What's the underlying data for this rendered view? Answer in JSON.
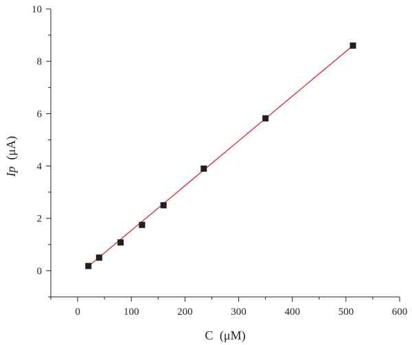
{
  "chart_data": {
    "type": "scatter",
    "title": "",
    "xlabel_main": "C",
    "xlabel_unit": "(μM)",
    "ylabel_main": "Ip",
    "ylabel_unit": "(μA)",
    "xlim": [
      -50,
      600
    ],
    "ylim": [
      -1,
      10
    ],
    "xticks": [
      0,
      100,
      200,
      300,
      400,
      500,
      600
    ],
    "yticks": [
      0,
      2,
      4,
      6,
      8,
      10
    ],
    "xtick_labels": [
      "0",
      "100",
      "200",
      "300",
      "400",
      "500",
      "600"
    ],
    "ytick_labels": [
      "0",
      "2",
      "4",
      "6",
      "8",
      "10"
    ],
    "grid": false,
    "colors": {
      "markers": "#231f20",
      "fit_line": "#e3242b",
      "axes": "#231f20"
    },
    "series": [
      {
        "x": [
          20,
          40,
          80,
          120,
          160,
          235,
          350,
          513
        ],
        "y": [
          0.18,
          0.5,
          1.08,
          1.75,
          2.5,
          3.9,
          5.82,
          8.6
        ]
      }
    ],
    "fit_line": {
      "x": [
        20,
        513
      ],
      "y": [
        0.17,
        8.6
      ]
    }
  }
}
